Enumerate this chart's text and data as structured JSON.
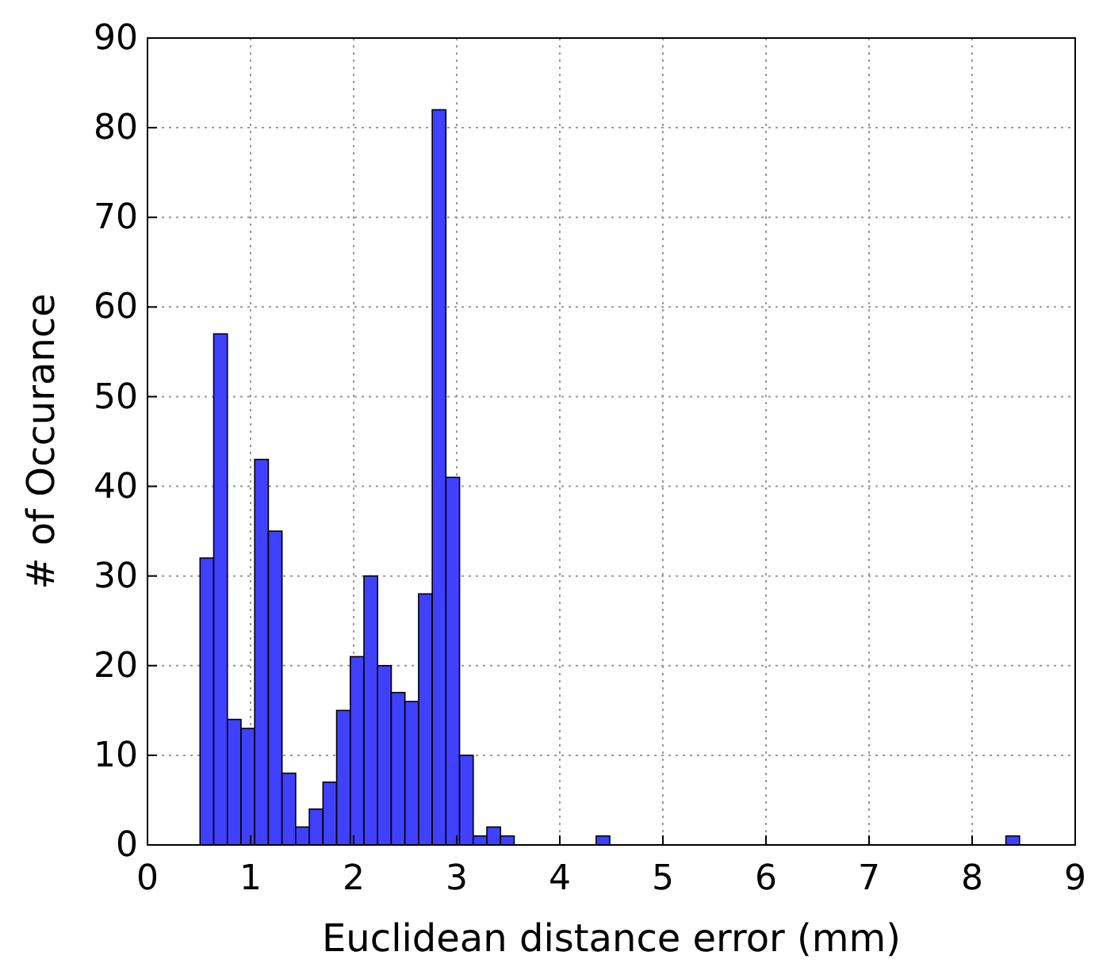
{
  "chart_data": {
    "type": "histogram",
    "xlabel": "Euclidean distance error (mm)",
    "ylabel": "# of Occurance",
    "bins": [
      0.51,
      0.6425,
      0.775,
      0.9075,
      1.04,
      1.1725,
      1.305,
      1.4375,
      1.57,
      1.7025,
      1.835,
      1.9675,
      2.1,
      2.2325,
      2.365,
      2.4975,
      2.63,
      2.7625,
      2.895,
      3.0275,
      3.16,
      3.2925,
      3.425,
      3.5575,
      3.69,
      3.8225,
      3.955,
      4.0875,
      4.22,
      4.3525,
      4.485,
      4.6175,
      4.75,
      4.8825,
      5.015,
      5.1475,
      5.28,
      5.4125,
      5.545,
      5.6775,
      5.81,
      5.9425,
      6.075,
      6.2075,
      6.34,
      6.4725,
      6.605,
      6.7375,
      6.87,
      7.0025,
      7.135,
      7.2675,
      7.4,
      7.5325,
      7.665,
      7.7975,
      7.93,
      8.0625,
      8.195,
      8.3275,
      8.46
    ],
    "values": [
      32,
      57,
      14,
      13,
      43,
      35,
      8,
      2,
      4,
      7,
      15,
      21,
      30,
      20,
      17,
      16,
      28,
      82,
      41,
      10,
      1,
      2,
      1,
      0,
      0,
      0,
      0,
      0,
      0,
      1,
      0,
      0,
      0,
      0,
      0,
      0,
      0,
      0,
      0,
      0,
      0,
      0,
      0,
      0,
      0,
      0,
      0,
      0,
      0,
      0,
      0,
      0,
      0,
      0,
      0,
      0,
      0,
      0,
      0,
      1
    ],
    "color": "#4040ff",
    "xlim": [
      0,
      9
    ],
    "xticks": [
      0,
      1,
      2,
      3,
      4,
      5,
      6,
      7,
      8,
      9
    ],
    "ylim": [
      0,
      90
    ],
    "yticks": [
      0,
      10,
      20,
      30,
      40,
      50,
      60,
      70,
      80,
      90
    ],
    "grid": true
  }
}
